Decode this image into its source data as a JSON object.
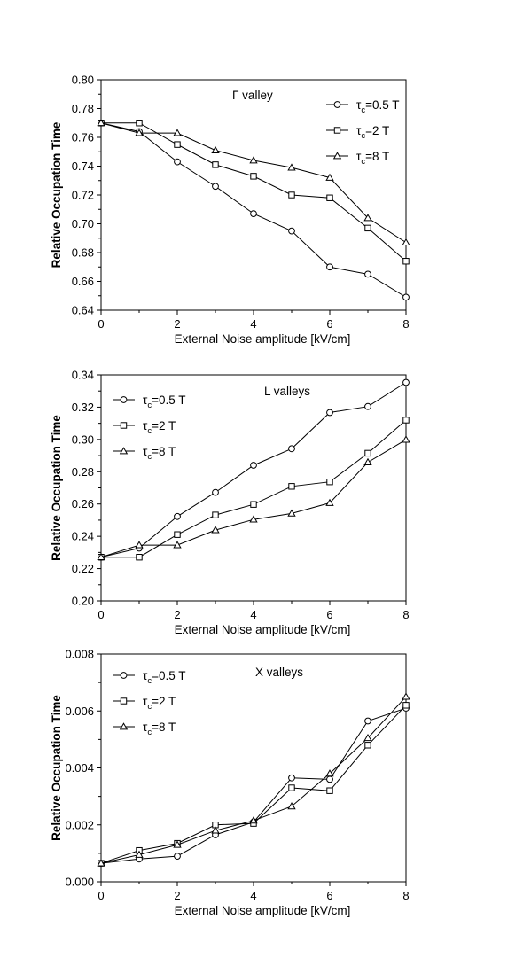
{
  "chart_data": [
    {
      "type": "line",
      "panel_label": "Γ valley",
      "xlabel": "External Noise amplitude [kV/cm]",
      "ylabel": "Relative Occupation Time",
      "xlim": [
        0,
        8
      ],
      "ylim": [
        0.64,
        0.8
      ],
      "x_ticks": [
        "0",
        "2",
        "4",
        "6",
        "8"
      ],
      "y_ticks": [
        "0.64",
        "0.66",
        "0.68",
        "0.70",
        "0.72",
        "0.74",
        "0.76",
        "0.78",
        "0.80"
      ],
      "legend_position": "top-right",
      "x": [
        0,
        1,
        2,
        3,
        4,
        5,
        6,
        7,
        8
      ],
      "series": [
        {
          "legend_prefix": "τ",
          "legend_sub": "c",
          "legend_suffix": "=0.5 T",
          "marker": "circle",
          "values": [
            0.77,
            0.764,
            0.743,
            0.726,
            0.707,
            0.695,
            0.67,
            0.665,
            0.649
          ]
        },
        {
          "legend_prefix": "τ",
          "legend_sub": "c",
          "legend_suffix": "=2 T",
          "marker": "square",
          "values": [
            0.77,
            0.77,
            0.755,
            0.741,
            0.733,
            0.72,
            0.718,
            0.697,
            0.674
          ]
        },
        {
          "legend_prefix": "τ",
          "legend_sub": "c",
          "legend_suffix": "=8 T",
          "marker": "triangle",
          "values": [
            0.77,
            0.763,
            0.763,
            0.751,
            0.744,
            0.739,
            0.732,
            0.704,
            0.687
          ]
        }
      ]
    },
    {
      "type": "line",
      "panel_label": "L valleys",
      "xlabel": "External Noise amplitude [kV/cm]",
      "ylabel": "Relative Occupation Time",
      "xlim": [
        0,
        8
      ],
      "ylim": [
        0.2,
        0.35
      ],
      "x_ticks": [
        "0",
        "2",
        "4",
        "6",
        "8"
      ],
      "y_ticks": [
        "0.20",
        "0.22",
        "0.24",
        "0.26",
        "0.28",
        "0.30",
        "0.32",
        "0.34"
      ],
      "legend_position": "top-left",
      "x": [
        0,
        1,
        2,
        3,
        4,
        5,
        6,
        7,
        8
      ],
      "series": [
        {
          "legend_prefix": "τ",
          "legend_sub": "c",
          "legend_suffix": "=0.5 T",
          "marker": "circle",
          "values": [
            0.229,
            0.235,
            0.256,
            0.272,
            0.29,
            0.301,
            0.325,
            0.329,
            0.345
          ]
        },
        {
          "legend_prefix": "τ",
          "legend_sub": "c",
          "legend_suffix": "=2 T",
          "marker": "square",
          "values": [
            0.229,
            0.229,
            0.244,
            0.257,
            0.264,
            0.276,
            0.279,
            0.298,
            0.32
          ]
        },
        {
          "legend_prefix": "τ",
          "legend_sub": "c",
          "legend_suffix": "=8 T",
          "marker": "triangle",
          "values": [
            0.229,
            0.237,
            0.237,
            0.247,
            0.254,
            0.258,
            0.265,
            0.292,
            0.307
          ]
        }
      ]
    },
    {
      "type": "line",
      "panel_label": "X valleys",
      "xlabel": "External Noise amplitude [kV/cm]",
      "ylabel": "Relative Occupation Time",
      "xlim": [
        0,
        8
      ],
      "ylim": [
        0.0,
        0.008
      ],
      "x_ticks": [
        "0",
        "2",
        "4",
        "6",
        "8"
      ],
      "y_ticks": [
        "0.000",
        "0.002",
        "0.004",
        "0.006",
        "0.008"
      ],
      "legend_position": "top-left",
      "x": [
        0,
        1,
        2,
        3,
        4,
        5,
        6,
        7,
        8
      ],
      "series": [
        {
          "legend_prefix": "τ",
          "legend_sub": "c",
          "legend_suffix": "=0.5 T",
          "marker": "circle",
          "values": [
            0.00065,
            0.0008,
            0.0009,
            0.00165,
            0.0021,
            0.00365,
            0.0036,
            0.00565,
            0.0061
          ]
        },
        {
          "legend_prefix": "τ",
          "legend_sub": "c",
          "legend_suffix": "=2 T",
          "marker": "square",
          "values": [
            0.00065,
            0.0011,
            0.00135,
            0.002,
            0.00205,
            0.0033,
            0.0032,
            0.0048,
            0.0062
          ]
        },
        {
          "legend_prefix": "τ",
          "legend_sub": "c",
          "legend_suffix": "=8 T",
          "marker": "triangle",
          "values": [
            0.00065,
            0.00095,
            0.0013,
            0.0018,
            0.00215,
            0.00265,
            0.0038,
            0.00505,
            0.0065
          ]
        }
      ]
    }
  ]
}
